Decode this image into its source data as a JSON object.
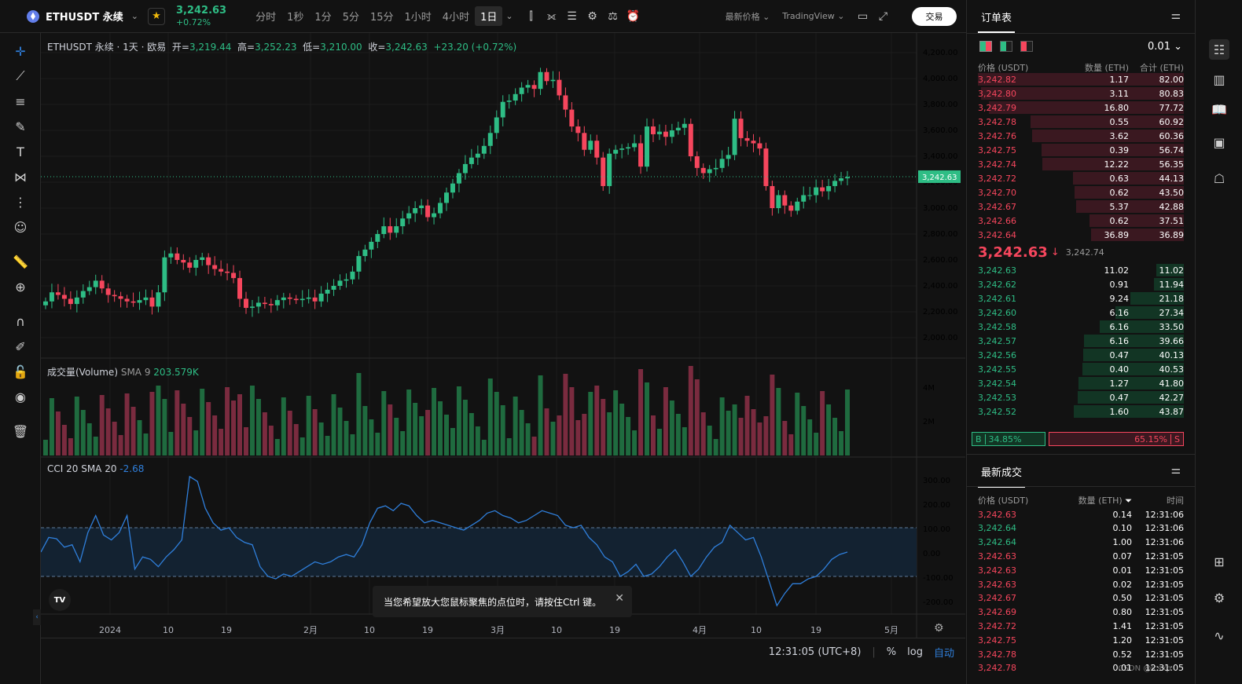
{
  "topbar": {
    "symbol": "ETHUSDT 永续",
    "last_price": "3,242.63",
    "change_pct": "+0.72%",
    "timeframes": [
      "分时",
      "1秒",
      "1分",
      "5分",
      "15分",
      "1小时",
      "4小时",
      "1日"
    ],
    "active_timeframe": "1日",
    "price_type": "最新价格",
    "chart_type": "TradingView",
    "trade_label": "交易"
  },
  "legend": {
    "title": "ETHUSDT 永续 · 1天 · 欧易",
    "open_label": "开=",
    "open": "3,219.44",
    "high_label": "高=",
    "high": "3,252.23",
    "low_label": "低=",
    "low": "3,210.00",
    "close_label": "收=",
    "close": "3,242.63",
    "change": "+23.20 (+0.72%)"
  },
  "price_axis": [
    "4,200.00",
    "4,000.00",
    "3,800.00",
    "3,600.00",
    "3,400.00",
    "3,200.00",
    "3,000.00",
    "2,800.00",
    "2,600.00",
    "2,400.00",
    "2,200.00",
    "2,000.00"
  ],
  "price_marker": "3,242.63",
  "volume_pane": {
    "label": "成交量(Volume)",
    "sma_label": "SMA 9",
    "sma_value": "203.579K",
    "axis": [
      "4M",
      "2M"
    ]
  },
  "cci_pane": {
    "label": "CCI 20 SMA 20",
    "value": "-2.68",
    "axis": [
      "300.00",
      "200.00",
      "100.00",
      "0.00",
      "-100.00",
      "-200.00"
    ]
  },
  "time_axis": [
    "2024",
    "10",
    "19",
    "2月",
    "10",
    "19",
    "3月",
    "10",
    "19",
    "4月",
    "10",
    "19",
    "5月"
  ],
  "bottombar": {
    "clock": "12:31:05 (UTC+8)",
    "pct": "%",
    "log": "log",
    "auto": "自动"
  },
  "toast": {
    "message": "当您希望放大您鼠标聚焦的点位时，请按住Ctrl 键。"
  },
  "tv_logo": "TV",
  "orderbook": {
    "title": "订单表",
    "tick_size": "0.01",
    "headers": [
      "价格 (USDT)",
      "数量 (ETH)",
      "合计 (ETH)"
    ],
    "asks": [
      [
        "3,242.82",
        "1.17",
        "82.00"
      ],
      [
        "3,242.80",
        "3.11",
        "80.83"
      ],
      [
        "3,242.79",
        "16.80",
        "77.72"
      ],
      [
        "3,242.78",
        "0.55",
        "60.92"
      ],
      [
        "3,242.76",
        "3.62",
        "60.36"
      ],
      [
        "3,242.75",
        "0.39",
        "56.74"
      ],
      [
        "3,242.74",
        "12.22",
        "56.35"
      ],
      [
        "3,242.72",
        "0.63",
        "44.13"
      ],
      [
        "3,242.70",
        "0.62",
        "43.50"
      ],
      [
        "3,242.67",
        "5.37",
        "42.88"
      ],
      [
        "3,242.66",
        "0.62",
        "37.51"
      ],
      [
        "3,242.64",
        "36.89",
        "36.89"
      ]
    ],
    "mid_price": "3,242.63",
    "mid_mark": "3,242.74",
    "bids": [
      [
        "3,242.63",
        "11.02",
        "11.02"
      ],
      [
        "3,242.62",
        "0.91",
        "11.94"
      ],
      [
        "3,242.61",
        "9.24",
        "21.18"
      ],
      [
        "3,242.60",
        "6.16",
        "27.34"
      ],
      [
        "3,242.58",
        "6.16",
        "33.50"
      ],
      [
        "3,242.57",
        "6.16",
        "39.66"
      ],
      [
        "3,242.56",
        "0.47",
        "40.13"
      ],
      [
        "3,242.55",
        "0.40",
        "40.53"
      ],
      [
        "3,242.54",
        "1.27",
        "41.80"
      ],
      [
        "3,242.53",
        "0.47",
        "42.27"
      ],
      [
        "3,242.52",
        "1.60",
        "43.87"
      ]
    ],
    "buy_tag": "B",
    "buy_pct": "34.85%",
    "sell_pct": "65.15%",
    "sell_tag": "S"
  },
  "trades": {
    "title": "最新成交",
    "headers": [
      "价格 (USDT)",
      "数量 (ETH)",
      "时间"
    ],
    "rows": [
      [
        "3,242.63",
        "0.14",
        "12:31:06",
        "sell"
      ],
      [
        "3,242.64",
        "0.10",
        "12:31:06",
        "buy"
      ],
      [
        "3,242.64",
        "1.00",
        "12:31:06",
        "buy"
      ],
      [
        "3,242.63",
        "0.07",
        "12:31:05",
        "sell"
      ],
      [
        "3,242.63",
        "0.01",
        "12:31:05",
        "sell"
      ],
      [
        "3,242.63",
        "0.02",
        "12:31:05",
        "sell"
      ],
      [
        "3,242.67",
        "0.50",
        "12:31:05",
        "sell"
      ],
      [
        "3,242.69",
        "0.80",
        "12:31:05",
        "sell"
      ],
      [
        "3,242.72",
        "1.41",
        "12:31:05",
        "sell"
      ],
      [
        "3,242.75",
        "1.20",
        "12:31:05",
        "sell"
      ],
      [
        "3,242.78",
        "0.52",
        "12:31:05",
        "sell"
      ],
      [
        "3,242.78",
        "0.01",
        "12:31:05",
        "sell"
      ]
    ]
  },
  "watermark": "CSDN @lcsxp",
  "colors": {
    "up": "#2ebd85",
    "down": "#f6465d",
    "cci": "#2f7fdb"
  }
}
